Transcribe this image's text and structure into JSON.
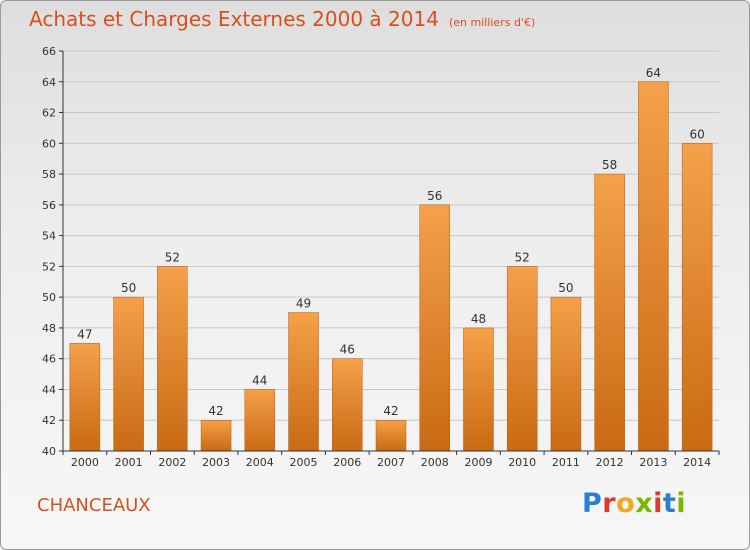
{
  "header": {
    "title": "Achats et Charges Externes 2000 à 2014",
    "subtitle": "(en milliers d'€)"
  },
  "footer": {
    "place": "CHANCEAUX",
    "logo": "Proxiti",
    "logo_colors": [
      "#2a7fd4",
      "#e0392b",
      "#f5a623",
      "#7ab800",
      "#e0392b",
      "#2a7fd4",
      "#7ab800"
    ]
  },
  "colors": {
    "bar_top": "#f5a04a",
    "bar_bottom": "#c96a14",
    "grid": "#c8c8c8",
    "axis": "#333333"
  },
  "chart_data": {
    "type": "bar",
    "title": "Achats et Charges Externes 2000 à 2014",
    "subtitle": "(en milliers d'€)",
    "xlabel": "",
    "ylabel": "",
    "categories": [
      "2000",
      "2001",
      "2002",
      "2003",
      "2004",
      "2005",
      "2006",
      "2007",
      "2008",
      "2009",
      "2010",
      "2011",
      "2012",
      "2013",
      "2014"
    ],
    "values": [
      47,
      50,
      52,
      42,
      44,
      49,
      46,
      42,
      56,
      48,
      52,
      50,
      58,
      64,
      60
    ],
    "data_labels": [
      "47",
      "50",
      "52",
      "42",
      "44",
      "49",
      "46",
      "42",
      "56",
      "48",
      "52",
      "50",
      "58",
      "64",
      "60"
    ],
    "ylim": [
      40,
      66
    ],
    "yticks": [
      40,
      42,
      44,
      46,
      48,
      50,
      52,
      54,
      56,
      58,
      60,
      62,
      64,
      66
    ],
    "ytick_labels": [
      "40",
      "42",
      "44",
      "46",
      "48",
      "50",
      "52",
      "54",
      "56",
      "58",
      "60",
      "62",
      "64",
      "66"
    ],
    "grid": true,
    "legend": "none"
  }
}
